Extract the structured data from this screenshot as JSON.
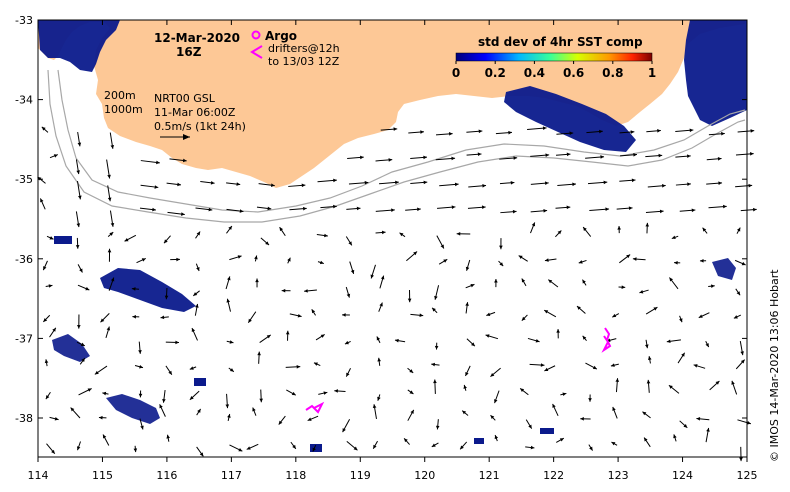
{
  "map": {
    "date_line": "12-Mar-2020",
    "time_line": "16Z",
    "argo_label": "Argo",
    "drifter_line1": "drifters@12h",
    "drifter_line2": "to 13/03 12Z",
    "contour_200": "200m",
    "contour_1000": "1000m",
    "product_line": "NRT00 GSL",
    "product_time": "11-Mar 06:00Z",
    "scale_label": "0.5m/s (1kt 24h)",
    "colorbar_title": "std dev of 4hr SST comp",
    "colorbar_ticks": [
      "0",
      "0.2",
      "0.4",
      "0.6",
      "0.8",
      "1"
    ],
    "credit": "©  IMOS 14-Mar-2020 13:06 Hobart",
    "lon_ticks": [
      "114",
      "115",
      "116",
      "117",
      "118",
      "119",
      "120",
      "121",
      "122",
      "123",
      "124",
      "125"
    ],
    "lat_ticks": [
      "-33",
      "-34",
      "-35",
      "-36",
      "-37",
      "-38"
    ],
    "colors": {
      "land": "#fdc896",
      "sst_high": "#0b1a8c",
      "drifter": "#ff00ff",
      "contour": "#a8a8a8"
    },
    "icons": [
      "argo-float-icon",
      "drifter-marker-icon",
      "velocity-arrow-icon"
    ]
  }
}
